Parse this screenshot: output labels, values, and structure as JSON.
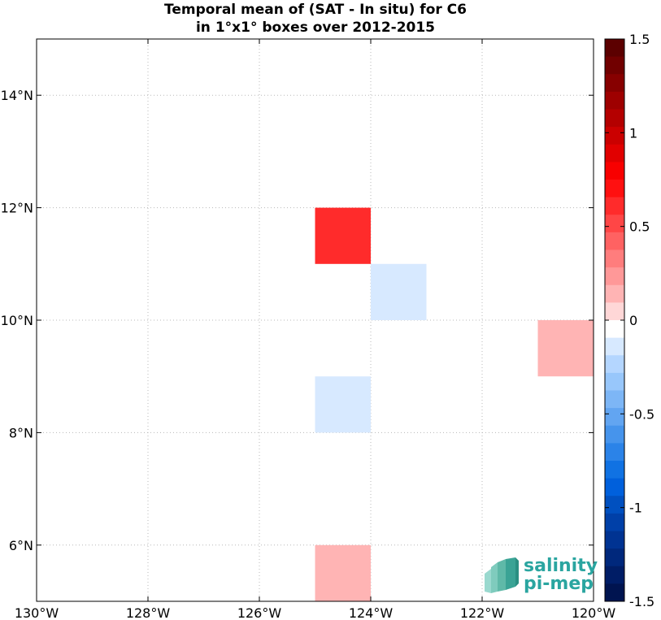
{
  "chart_data": {
    "type": "heatmap",
    "title": "Temporal mean of (SAT - In situ) for C6",
    "subtitle": "in 1°x1° boxes over 2012-2015",
    "xlabel": "",
    "ylabel": "",
    "xlim": [
      -130,
      -120
    ],
    "ylim": [
      5,
      15
    ],
    "x_ticks": [
      {
        "value": -130,
        "label": "130°W"
      },
      {
        "value": -128,
        "label": "128°W"
      },
      {
        "value": -126,
        "label": "126°W"
      },
      {
        "value": -124,
        "label": "124°W"
      },
      {
        "value": -122,
        "label": "122°W"
      },
      {
        "value": -120,
        "label": "120°W"
      }
    ],
    "y_ticks": [
      {
        "value": 6,
        "label": "6°N"
      },
      {
        "value": 8,
        "label": "8°N"
      },
      {
        "value": 10,
        "label": "10°N"
      },
      {
        "value": 12,
        "label": "12°N"
      },
      {
        "value": 14,
        "label": "14°N"
      }
    ],
    "grid": true,
    "cells": [
      {
        "lon": -125,
        "lat": 11,
        "value": 0.6
      },
      {
        "lon": -124,
        "lat": 10,
        "value": -0.1
      },
      {
        "lon": -121,
        "lat": 9,
        "value": 0.1
      },
      {
        "lon": -125,
        "lat": 8,
        "value": -0.1
      },
      {
        "lon": -125,
        "lat": 5,
        "value": 0.1
      }
    ],
    "colorbar": {
      "range": [
        -1.5,
        1.5
      ],
      "ticks": [
        {
          "value": 1.5,
          "label": "1.5"
        },
        {
          "value": 1,
          "label": "1"
        },
        {
          "value": 0.5,
          "label": "0.5"
        },
        {
          "value": 0,
          "label": "0"
        },
        {
          "value": -0.5,
          "label": "-0.5"
        },
        {
          "value": -1,
          "label": "-1"
        },
        {
          "value": -1.5,
          "label": "-1.5"
        }
      ],
      "colors_top_to_bottom": [
        "#5c0000",
        "#710000",
        "#870000",
        "#9e0000",
        "#b40000",
        "#cb0000",
        "#e10000",
        "#f80000",
        "#ff1010",
        "#ff2b2b",
        "#ff4646",
        "#ff6262",
        "#ff7d7d",
        "#ff9898",
        "#ffb4b4",
        "#ffd7d7",
        "#ffffff",
        "#d7e9ff",
        "#b4d6ff",
        "#98c7fb",
        "#7db6f6",
        "#62a5f1",
        "#4694ec",
        "#2b83e8",
        "#1072e3",
        "#0060dc",
        "#0050c0",
        "#0040a8",
        "#003392",
        "#00287c",
        "#001d66",
        "#001450"
      ]
    },
    "logo": {
      "line1": "salinity",
      "line2": "pi-mep"
    }
  }
}
